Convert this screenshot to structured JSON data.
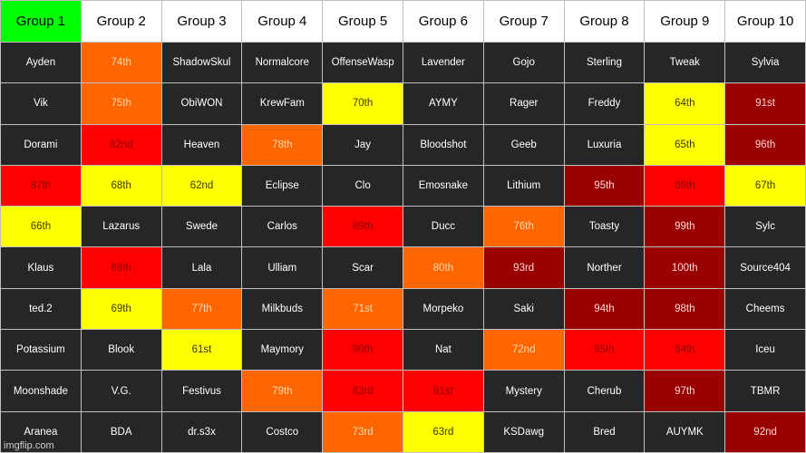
{
  "headers": [
    "Group 1",
    "Group 2",
    "Group 3",
    "Group 4",
    "Group 5",
    "Group 6",
    "Group 7",
    "Group 8",
    "Group 9",
    "Group 10"
  ],
  "rows": [
    [
      [
        "Ayden",
        "dark"
      ],
      [
        "74th",
        "orange"
      ],
      [
        "ShadowSkul",
        "dark"
      ],
      [
        "Normalcore",
        "dark"
      ],
      [
        "OffenseWasp",
        "dark"
      ],
      [
        "Lavender",
        "dark"
      ],
      [
        "Gojo",
        "dark"
      ],
      [
        "Sterling",
        "dark"
      ],
      [
        "Tweak",
        "dark"
      ],
      [
        "Sylvia",
        "dark"
      ]
    ],
    [
      [
        "Vik",
        "dark"
      ],
      [
        "75th",
        "orange"
      ],
      [
        "ObiWON",
        "dark"
      ],
      [
        "KrewFam",
        "dark"
      ],
      [
        "70th",
        "yellow"
      ],
      [
        "AYMY",
        "dark"
      ],
      [
        "Rager",
        "dark"
      ],
      [
        "Freddy",
        "dark"
      ],
      [
        "64th",
        "yellow"
      ],
      [
        "91st",
        "maroon"
      ]
    ],
    [
      [
        "Dorami",
        "dark"
      ],
      [
        "82nd",
        "red"
      ],
      [
        "Heaven",
        "dark"
      ],
      [
        "78th",
        "orange"
      ],
      [
        "Jay",
        "dark"
      ],
      [
        "Bloodshot",
        "dark"
      ],
      [
        "Geeb",
        "dark"
      ],
      [
        "Luxuria",
        "dark"
      ],
      [
        "65th",
        "yellow"
      ],
      [
        "96th",
        "maroon"
      ]
    ],
    [
      [
        "87th",
        "red"
      ],
      [
        "68th",
        "yellow"
      ],
      [
        "62nd",
        "yellow"
      ],
      [
        "Eclipse",
        "dark"
      ],
      [
        "Clo",
        "dark"
      ],
      [
        "Emosnake",
        "dark"
      ],
      [
        "Lithium",
        "dark"
      ],
      [
        "95th",
        "maroon"
      ],
      [
        "86th",
        "red"
      ],
      [
        "67th",
        "yellow"
      ]
    ],
    [
      [
        "66th",
        "yellow"
      ],
      [
        "Lazarus",
        "dark"
      ],
      [
        "Swede",
        "dark"
      ],
      [
        "Carlos",
        "dark"
      ],
      [
        "89th",
        "red"
      ],
      [
        "Ducc",
        "dark"
      ],
      [
        "76th",
        "orange"
      ],
      [
        "Toasty",
        "dark"
      ],
      [
        "99th",
        "maroon"
      ],
      [
        "Sylc",
        "dark"
      ]
    ],
    [
      [
        "Klaus",
        "dark"
      ],
      [
        "88th",
        "red"
      ],
      [
        "Lala",
        "dark"
      ],
      [
        "Ulliam",
        "dark"
      ],
      [
        "Scar",
        "dark"
      ],
      [
        "80th",
        "orange"
      ],
      [
        "93rd",
        "maroon"
      ],
      [
        "Norther",
        "dark"
      ],
      [
        "100th",
        "maroon"
      ],
      [
        "Source404",
        "dark"
      ]
    ],
    [
      [
        "ted.2",
        "dark"
      ],
      [
        "69th",
        "yellow"
      ],
      [
        "77th",
        "orange"
      ],
      [
        "Milkbuds",
        "dark"
      ],
      [
        "71st",
        "orange"
      ],
      [
        "Morpeko",
        "dark"
      ],
      [
        "Saki",
        "dark"
      ],
      [
        "94th",
        "maroon"
      ],
      [
        "98th",
        "maroon"
      ],
      [
        "Cheems",
        "dark"
      ]
    ],
    [
      [
        "Potassium",
        "dark"
      ],
      [
        "Blook",
        "dark"
      ],
      [
        "61st",
        "yellow"
      ],
      [
        "Maymory",
        "dark"
      ],
      [
        "90th",
        "red"
      ],
      [
        "Nat",
        "dark"
      ],
      [
        "72nd",
        "orange"
      ],
      [
        "85th",
        "red"
      ],
      [
        "84th",
        "red"
      ],
      [
        "Iceu",
        "dark"
      ]
    ],
    [
      [
        "Moonshade",
        "dark"
      ],
      [
        "V.G.",
        "dark"
      ],
      [
        "Festivus",
        "dark"
      ],
      [
        "79th",
        "orange"
      ],
      [
        "83rd",
        "red"
      ],
      [
        "81st",
        "red"
      ],
      [
        "Mystery",
        "dark"
      ],
      [
        "Cherub",
        "dark"
      ],
      [
        "97th",
        "maroon"
      ],
      [
        "TBMR",
        "dark"
      ]
    ],
    [
      [
        "Aranea",
        "dark"
      ],
      [
        "BDA",
        "dark"
      ],
      [
        "dr.s3x",
        "dark"
      ],
      [
        "Costco",
        "dark"
      ],
      [
        "73rd",
        "orange"
      ],
      [
        "63rd",
        "yellow"
      ],
      [
        "KSDawg",
        "dark"
      ],
      [
        "Bred",
        "dark"
      ],
      [
        "AUYMK",
        "dark"
      ],
      [
        "92nd",
        "maroon"
      ]
    ]
  ],
  "colors": {
    "header_first": "#00ff00",
    "header": "#ffffff",
    "dark": "#262626",
    "orange": "#ff6600",
    "yellow": "#ffff00",
    "red": "#ff0000",
    "maroon": "#990000"
  },
  "watermark": "imgflip.com"
}
